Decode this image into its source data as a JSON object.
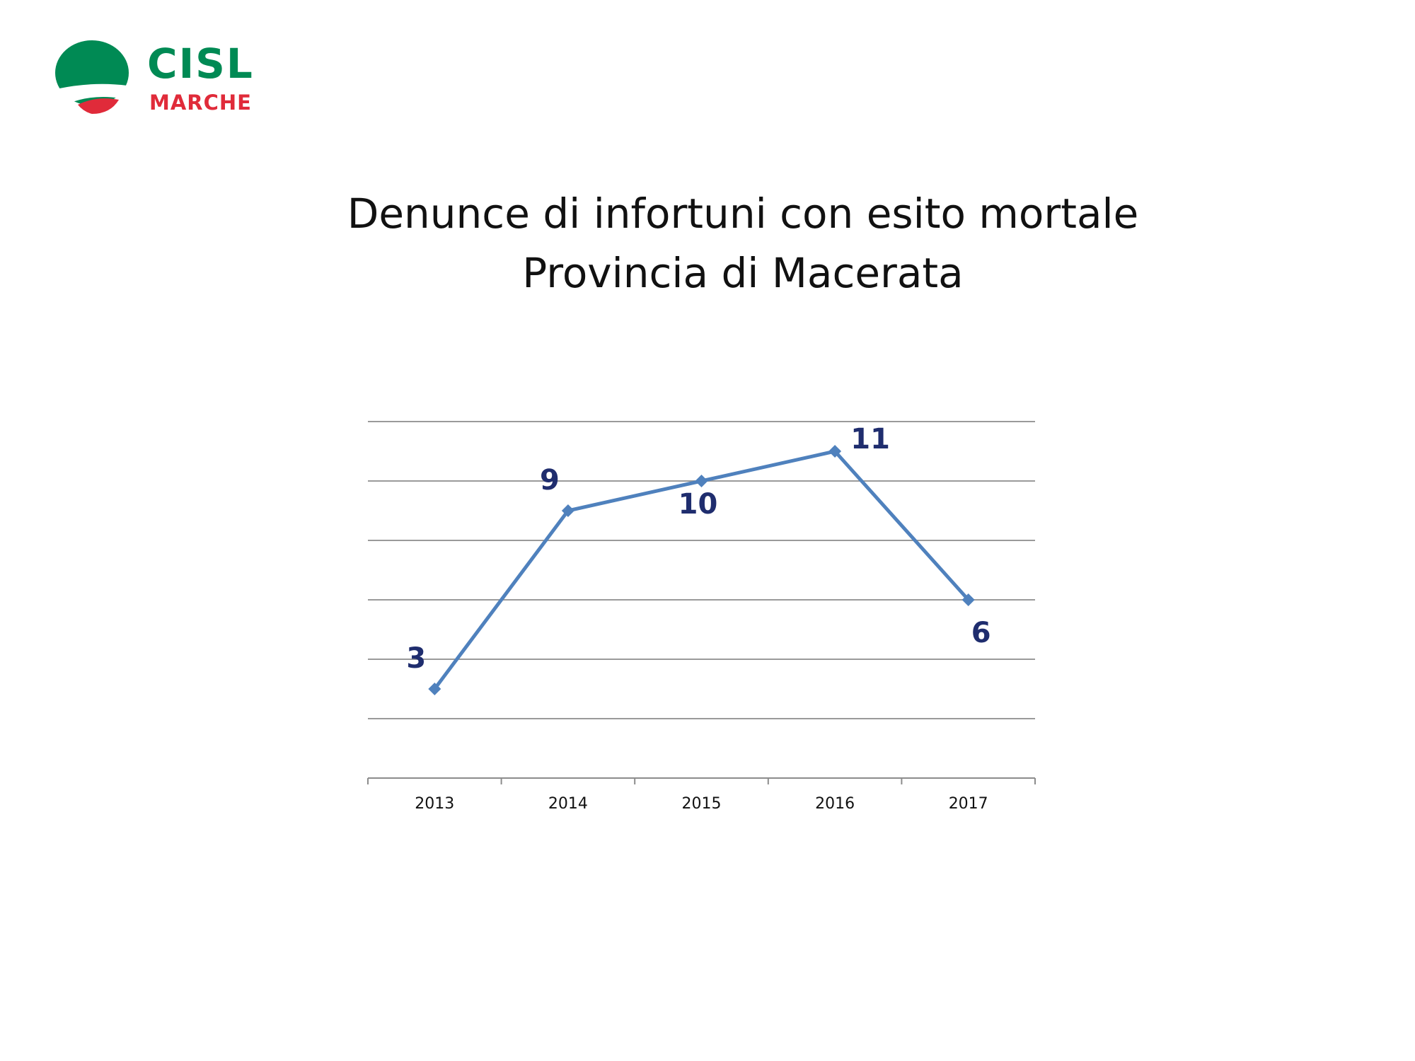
{
  "logo": {
    "name": "CISL",
    "region": "MARCHE",
    "colors": {
      "green": "#008A54",
      "red": "#E02B3A"
    }
  },
  "title_lines": [
    "Denunce di infortuni con esito mortale",
    "Provincia di Macerata"
  ],
  "chart_data": {
    "type": "line",
    "title": "Denunce di infortuni con esito mortale Provincia di Macerata",
    "categories": [
      "2013",
      "2014",
      "2015",
      "2016",
      "2017"
    ],
    "series": [
      {
        "values": [
          3,
          9,
          10,
          11,
          6
        ],
        "color": "#4F81BD"
      }
    ],
    "data_labels": [
      "3",
      "9",
      "10",
      "11",
      "6"
    ],
    "ylim": [
      0,
      12
    ],
    "y_gridline_step": 2,
    "grid": true,
    "legend": "none",
    "marker": "diamond",
    "label_color": "#1F2D6E"
  }
}
